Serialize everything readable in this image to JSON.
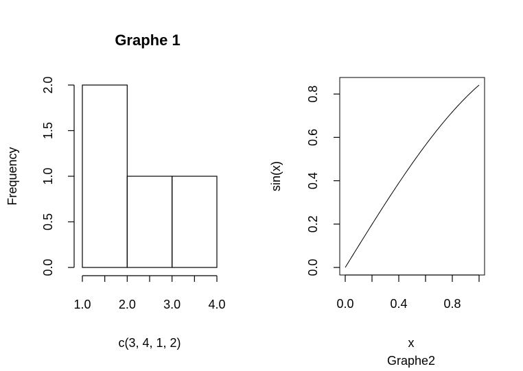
{
  "chart_data": [
    {
      "type": "bar",
      "subtype": "histogram",
      "title": "Graphe 1",
      "xlabel": "c(3, 4, 1, 2)",
      "ylabel": "Frequency",
      "bins": [
        {
          "from": 1.0,
          "to": 2.0,
          "count": 2
        },
        {
          "from": 2.0,
          "to": 3.0,
          "count": 1
        },
        {
          "from": 3.0,
          "to": 4.0,
          "count": 1
        }
      ],
      "xlim": [
        1.0,
        4.0
      ],
      "ylim": [
        0.0,
        2.0
      ],
      "x_ticks": [
        1.0,
        1.5,
        2.0,
        2.5,
        3.0,
        3.5,
        4.0
      ],
      "x_tick_labels": [
        "1.0",
        "2.0",
        "3.0",
        "4.0"
      ],
      "x_tick_label_values": [
        1.0,
        2.0,
        3.0,
        4.0
      ],
      "y_ticks": [
        0.0,
        0.5,
        1.0,
        1.5,
        2.0
      ],
      "y_tick_labels": [
        "0.0",
        "0.5",
        "1.0",
        "1.5",
        "2.0"
      ],
      "grid": false,
      "box": false
    },
    {
      "type": "line",
      "title": "",
      "xlabel": "x",
      "sublabel": "Graphe2",
      "ylabel": "sin(x)",
      "function": "sin",
      "xlim": [
        0.0,
        1.0
      ],
      "ylim": [
        0.0,
        0.8415
      ],
      "x_ticks": [
        0.0,
        0.2,
        0.4,
        0.6,
        0.8,
        1.0
      ],
      "x_tick_labels": [
        "0.0",
        "0.4",
        "0.8"
      ],
      "x_tick_label_values": [
        0.0,
        0.4,
        0.8
      ],
      "y_ticks": [
        0.0,
        0.2,
        0.4,
        0.6,
        0.8
      ],
      "y_tick_labels": [
        "0.0",
        "0.2",
        "0.4",
        "0.6",
        "0.8"
      ],
      "grid": false,
      "box": true
    }
  ]
}
